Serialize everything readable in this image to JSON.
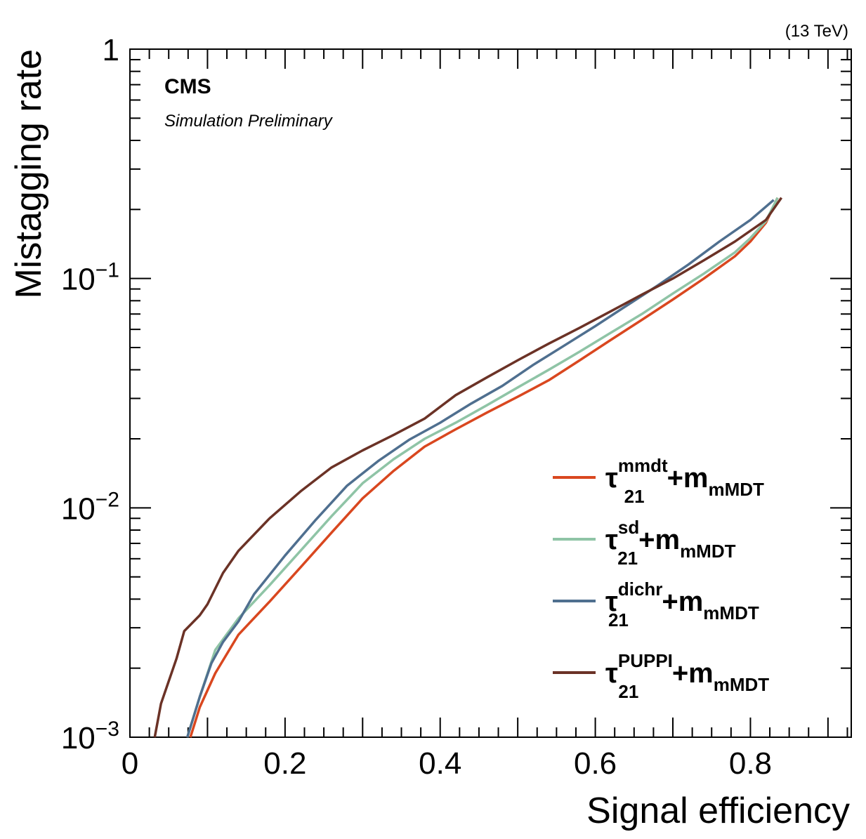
{
  "chart_data": {
    "type": "line",
    "title": "",
    "experiment_label": "CMS",
    "experiment_sublabel": "Simulation Preliminary",
    "energy_label": "(13 TeV)",
    "xlabel": "Signal efficiency",
    "ylabel": "Mistagging rate",
    "xlim": [
      0,
      0.93
    ],
    "ylim": [
      0.001,
      1
    ],
    "yscale": "log",
    "x_tick_labels": [
      "0",
      "0.2",
      "0.4",
      "0.6",
      "0.8"
    ],
    "x_ticks": [
      0,
      0.2,
      0.4,
      0.6,
      0.8
    ],
    "y_tick_labels": [
      {
        "value": 1,
        "base": "1",
        "exp": ""
      },
      {
        "value": 0.1,
        "base": "10",
        "exp": "−1"
      },
      {
        "value": 0.01,
        "base": "10",
        "exp": "−2"
      },
      {
        "value": 0.001,
        "base": "10",
        "exp": "−3"
      }
    ],
    "grid": false,
    "legend_position": "lower-right",
    "series": [
      {
        "name": "τ21mmdt+mmMDT",
        "legend": {
          "base": "τ",
          "sup": "mmdt",
          "sub": "21",
          "plus": "+m",
          "psub": "mMDT"
        },
        "color": "#d9471f",
        "x": [
          0.078,
          0.09,
          0.11,
          0.14,
          0.18,
          0.22,
          0.26,
          0.3,
          0.34,
          0.38,
          0.42,
          0.46,
          0.5,
          0.54,
          0.58,
          0.62,
          0.66,
          0.7,
          0.74,
          0.78,
          0.8,
          0.82,
          0.835
        ],
        "y": [
          0.001,
          0.00135,
          0.0019,
          0.0028,
          0.0039,
          0.0055,
          0.0078,
          0.011,
          0.0145,
          0.0185,
          0.022,
          0.026,
          0.0305,
          0.036,
          0.044,
          0.054,
          0.066,
          0.081,
          0.1,
          0.125,
          0.145,
          0.175,
          0.225
        ]
      },
      {
        "name": "τ21sd+mmMDT",
        "legend": {
          "base": "τ",
          "sup": "sd",
          "sub": "21",
          "plus": "+m",
          "psub": "mMDT"
        },
        "color": "#8fc4a6",
        "x": [
          0.074,
          0.09,
          0.11,
          0.14,
          0.18,
          0.22,
          0.26,
          0.3,
          0.34,
          0.38,
          0.42,
          0.46,
          0.5,
          0.54,
          0.58,
          0.62,
          0.66,
          0.7,
          0.74,
          0.78,
          0.8,
          0.82,
          0.835
        ],
        "y": [
          0.001,
          0.0015,
          0.0024,
          0.0033,
          0.0046,
          0.0065,
          0.0092,
          0.0128,
          0.0163,
          0.02,
          0.0235,
          0.028,
          0.0335,
          0.04,
          0.048,
          0.058,
          0.07,
          0.086,
          0.105,
          0.13,
          0.15,
          0.178,
          0.225
        ]
      },
      {
        "name": "τ21dichr+mmMDT",
        "legend": {
          "base": "τ",
          "sup": "dichr",
          "sub": "21",
          "plus": "+m",
          "psub": "mMDT"
        },
        "color": "#4f6f8f",
        "x": [
          0.074,
          0.09,
          0.105,
          0.12,
          0.14,
          0.16,
          0.2,
          0.24,
          0.28,
          0.32,
          0.36,
          0.4,
          0.44,
          0.48,
          0.52,
          0.56,
          0.6,
          0.64,
          0.68,
          0.72,
          0.76,
          0.8,
          0.83
        ],
        "y": [
          0.001,
          0.0015,
          0.0021,
          0.0026,
          0.0032,
          0.0042,
          0.0062,
          0.0089,
          0.0125,
          0.016,
          0.0198,
          0.0235,
          0.0285,
          0.034,
          0.042,
          0.051,
          0.062,
          0.076,
          0.093,
          0.115,
          0.145,
          0.18,
          0.22
        ]
      },
      {
        "name": "τ21PUPPI+mmMDT",
        "legend": {
          "base": "τ",
          "sup": "PUPPI",
          "sub": "21",
          "plus": "+m",
          "psub": "mMDT"
        },
        "color": "#6b3226",
        "x": [
          0.032,
          0.04,
          0.06,
          0.07,
          0.09,
          0.1,
          0.12,
          0.14,
          0.18,
          0.22,
          0.26,
          0.3,
          0.34,
          0.38,
          0.42,
          0.46,
          0.5,
          0.54,
          0.58,
          0.62,
          0.66,
          0.7,
          0.74,
          0.78,
          0.82,
          0.84
        ],
        "y": [
          0.001,
          0.0014,
          0.0022,
          0.0029,
          0.0034,
          0.0038,
          0.0052,
          0.0065,
          0.009,
          0.0118,
          0.015,
          0.0178,
          0.0208,
          0.0245,
          0.031,
          0.037,
          0.044,
          0.052,
          0.061,
          0.072,
          0.085,
          0.1,
          0.12,
          0.145,
          0.18,
          0.225
        ]
      }
    ]
  }
}
